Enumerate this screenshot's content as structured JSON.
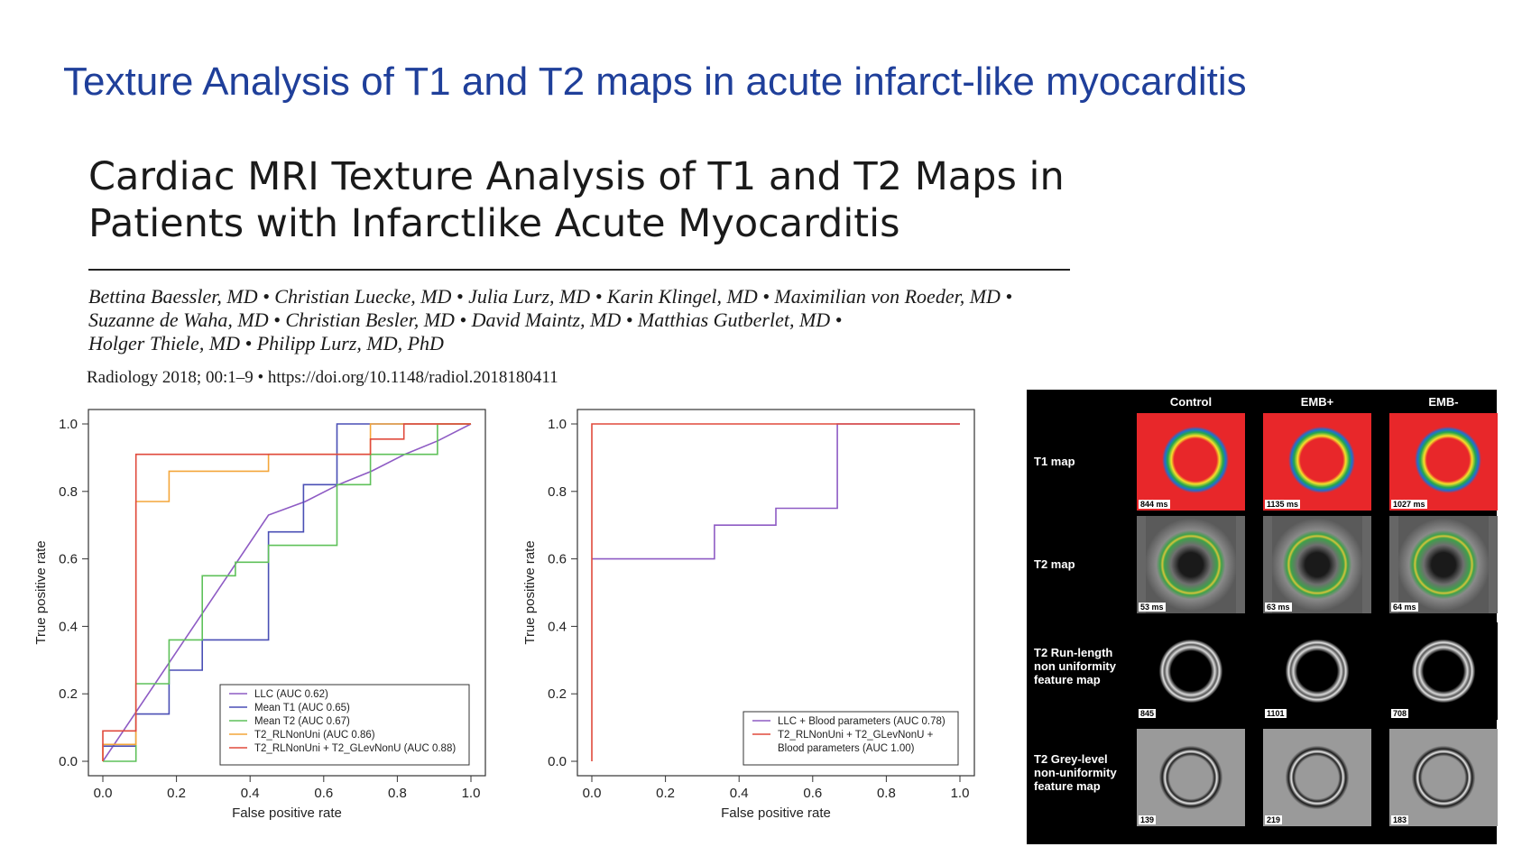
{
  "slide_title": "Texture Analysis of T1 and T2 maps in acute infarct-like myocarditis",
  "paper": {
    "title_line1": "Cardiac MRI Texture Analysis of T1 and T2 Maps in",
    "title_line2": "Patients with Infarctlike Acute Myocarditis",
    "authors_line1": "Bettina Baessler, MD • Christian Luecke, MD • Julia Lurz, MD • Karin Klingel, MD • Maximilian von Roeder, MD •",
    "authors_line2": "Suzanne de Waha, MD • Christian Besler, MD • David Maintz, MD • Matthias Gutberlet, MD •",
    "authors_line3": "Holger Thiele, MD • Philipp Lurz, MD, PhD",
    "citation": "Radiology 2018; 00:1–9   •   https://doi.org/10.1148/radiol.2018180411"
  },
  "chart_data": [
    {
      "type": "line",
      "xlabel": "False positive rate",
      "ylabel": "True positive rate",
      "xlim": [
        0,
        1
      ],
      "ylim": [
        0,
        1
      ],
      "ticks": [
        "0.0",
        "0.2",
        "0.4",
        "0.6",
        "0.8",
        "1.0"
      ],
      "legend_position": "bottom-right",
      "series": [
        {
          "name": "LLC (AUC 0.62)",
          "color": "#8e5bc4",
          "points": [
            [
              0,
              0
            ],
            [
              0.45,
              0.73
            ],
            [
              0.55,
              0.77
            ],
            [
              0.64,
              0.82
            ],
            [
              0.73,
              0.86
            ],
            [
              0.82,
              0.91
            ],
            [
              0.91,
              0.95
            ],
            [
              1,
              1
            ]
          ]
        },
        {
          "name": "Mean T1 (AUC 0.65)",
          "color": "#4a4fb5",
          "points": [
            [
              0,
              0.045
            ],
            [
              0.09,
              0.045
            ],
            [
              0.09,
              0.14
            ],
            [
              0.18,
              0.14
            ],
            [
              0.18,
              0.27
            ],
            [
              0.27,
              0.27
            ],
            [
              0.27,
              0.36
            ],
            [
              0.45,
              0.36
            ],
            [
              0.45,
              0.68
            ],
            [
              0.545,
              0.68
            ],
            [
              0.545,
              0.82
            ],
            [
              0.636,
              0.82
            ],
            [
              0.636,
              0.82
            ],
            [
              0.636,
              0.82
            ],
            [
              0.636,
              0.82
            ],
            [
              0.636,
              0.82
            ],
            [
              0.636,
              0.82
            ],
            [
              0.636,
              0.82
            ],
            [
              0.636,
              0.82
            ],
            [
              0.636,
              0.82
            ],
            [
              0.636,
              0.82
            ],
            [
              0.636,
              0.82
            ],
            [
              0.636,
              0.82
            ],
            [
              0.636,
              0.82
            ],
            [
              0.636,
              0.82
            ],
            [
              0.636,
              0.82
            ],
            [
              0.636,
              0.82
            ],
            [
              0.636,
              0.82
            ],
            [
              0.636,
              0.82
            ],
            [
              0.636,
              0.82
            ],
            [
              0.636,
              0.82
            ],
            [
              0.636,
              0.82
            ],
            [
              0.636,
              0.82
            ],
            [
              0.636,
              0.82
            ],
            [
              0.636,
              0.82
            ],
            [
              0.636,
              0.82
            ],
            [
              0.636,
              0.82
            ],
            [
              0.636,
              0.82
            ],
            [
              0.636,
              0.82
            ],
            [
              0.636,
              0.82
            ],
            [
              0.636,
              0.82
            ],
            [
              0.636,
              0.82
            ],
            [
              0.636,
              0.82
            ],
            [
              0.636,
              0.82
            ],
            [
              0.636,
              0.82
            ],
            [
              0.636,
              0.82
            ],
            [
              0.636,
              0.82
            ],
            [
              0.636,
              0.82
            ],
            [
              0.636,
              0.82
            ],
            [
              0.636,
              0.82
            ],
            [
              0.636,
              0.82
            ],
            [
              0.636,
              0.82
            ],
            [
              0.636,
              0.82
            ],
            [
              0.636,
              0.82
            ],
            [
              0.636,
              0.82
            ],
            [
              0.636,
              0.82
            ],
            [
              0.636,
              0.82
            ],
            [
              0.636,
              0.82
            ],
            [
              0.636,
              0.82
            ],
            [
              0.636,
              0.82
            ],
            [
              0.636,
              0.82
            ],
            [
              0.636,
              0.82
            ],
            [
              0.636,
              0.82
            ],
            [
              0.636,
              0.82
            ],
            [
              0.636,
              0.82
            ],
            [
              0.636,
              0.82
            ],
            [
              0.636,
              0.82
            ],
            [
              0.636,
              0.82
            ],
            [
              0.636,
              0.82
            ],
            [
              0.636,
              0.82
            ],
            [
              0.636,
              0.82
            ],
            [
              0.636,
              0.82
            ],
            [
              0.636,
              0.82
            ],
            [
              0.636,
              0.82
            ],
            [
              0.636,
              0.82
            ],
            [
              0.636,
              0.82
            ],
            [
              0.636,
              0.82
            ],
            [
              0.636,
              0.82
            ],
            [
              0.636,
              0.82
            ],
            [
              0.636,
              0.82
            ],
            [
              0.636,
              0.82
            ],
            [
              0.636,
              0.82
            ],
            [
              0.636,
              0.82
            ],
            [
              0.636,
              0.82
            ],
            [
              0.636,
              0.82
            ],
            [
              0.636,
              0.82
            ],
            [
              0.636,
              0.82
            ],
            [
              0.636,
              0.82
            ],
            [
              0.636,
              0.82
            ],
            [
              0.636,
              0.82
            ],
            [
              0.636,
              0.82
            ],
            [
              0.636,
              0.82
            ],
            [
              0.636,
              0.82
            ],
            [
              0.636,
              0.82
            ],
            [
              0.636,
              0.82
            ],
            [
              0.636,
              0.82
            ],
            [
              0.636,
              0.82
            ],
            [
              0.636,
              0.82
            ],
            [
              0.636,
              0.82
            ],
            [
              0.636,
              0.82
            ],
            [
              0.636,
              0.82
            ],
            [
              0.636,
              0.82
            ],
            [
              0.636,
              0.82
            ],
            [
              0.636,
              0.82
            ],
            [
              0.636,
              0.82
            ],
            [
              0.636,
              0.82
            ],
            [
              0.636,
              0.82
            ],
            [
              0.636,
              0.82
            ],
            [
              0.636,
              0.82
            ],
            [
              0.636,
              0.82
            ],
            [
              0.636,
              0.82
            ],
            [
              0.636,
              0.82
            ],
            [
              0.636,
              1
            ],
            [
              1,
              1
            ]
          ]
        },
        {
          "name": "Mean T2 (AUC 0.67)",
          "color": "#5fc15a",
          "points": [
            [
              0,
              0
            ],
            [
              0.09,
              0
            ],
            [
              0.09,
              0.23
            ],
            [
              0.18,
              0.23
            ],
            [
              0.18,
              0.36
            ],
            [
              0.27,
              0.36
            ],
            [
              0.27,
              0.55
            ],
            [
              0.36,
              0.55
            ],
            [
              0.36,
              0.59
            ],
            [
              0.45,
              0.59
            ],
            [
              0.45,
              0.64
            ],
            [
              0.636,
              0.64
            ],
            [
              0.636,
              0.82
            ],
            [
              0.727,
              0.82
            ],
            [
              0.727,
              0.91
            ],
            [
              0.909,
              0.91
            ],
            [
              0.909,
              1
            ],
            [
              1,
              1
            ]
          ]
        },
        {
          "name": "T2_RLNonUni (AUC 0.86)",
          "color": "#f4a63a",
          "points": [
            [
              0,
              0
            ],
            [
              0,
              0.05
            ],
            [
              0.09,
              0.05
            ],
            [
              0.09,
              0.77
            ],
            [
              0.18,
              0.77
            ],
            [
              0.18,
              0.86
            ],
            [
              0.45,
              0.86
            ],
            [
              0.45,
              0.91
            ],
            [
              0.727,
              0.91
            ],
            [
              0.727,
              1
            ],
            [
              1,
              1
            ]
          ]
        },
        {
          "name": "T2_RLNonUni + T2_GLevNonU (AUC 0.88)",
          "color": "#e04a3c",
          "points": [
            [
              0,
              0
            ],
            [
              0,
              0.09
            ],
            [
              0.09,
              0.09
            ],
            [
              0.09,
              0.91
            ],
            [
              0.727,
              0.91
            ],
            [
              0.727,
              0.955
            ],
            [
              0.818,
              0.955
            ],
            [
              0.818,
              1
            ],
            [
              1,
              1
            ]
          ]
        }
      ]
    },
    {
      "type": "line",
      "xlabel": "False positive rate",
      "ylabel": "True positive rate",
      "xlim": [
        0,
        1
      ],
      "ylim": [
        0,
        1
      ],
      "ticks": [
        "0.0",
        "0.2",
        "0.4",
        "0.6",
        "0.8",
        "1.0"
      ],
      "legend_position": "bottom-right",
      "series": [
        {
          "name": "LLC + Blood parameters (AUC 0.78)",
          "color": "#8e5bc4",
          "points": [
            [
              0,
              0.6
            ],
            [
              0.333,
              0.6
            ],
            [
              0.333,
              0.7
            ],
            [
              0.5,
              0.7
            ],
            [
              0.5,
              0.75
            ],
            [
              0.667,
              0.75
            ],
            [
              0.667,
              1
            ],
            [
              1,
              1
            ]
          ]
        },
        {
          "name_lines": [
            "T2_RLNonUni + T2_GLevNonU +",
            "Blood parameters (AUC 1.00)"
          ],
          "color": "#e04a3c",
          "points": [
            [
              0,
              0
            ],
            [
              0,
              1
            ],
            [
              1,
              1
            ]
          ]
        }
      ]
    }
  ],
  "mri_figure": {
    "columns": [
      "Control",
      "EMB+",
      "EMB-"
    ],
    "rows": [
      {
        "label": [
          "T1 map"
        ],
        "values": [
          "844 ms",
          "1135 ms",
          "1027 ms"
        ]
      },
      {
        "label": [
          "T2 map"
        ],
        "values": [
          "53 ms",
          "63 ms",
          "64 ms"
        ]
      },
      {
        "label": [
          "T2 Run-length",
          "non uniformity",
          "feature map"
        ],
        "values": [
          "845",
          "1101",
          "708"
        ]
      },
      {
        "label": [
          "T2 Grey-level",
          "non-uniformity",
          "feature map"
        ],
        "values": [
          "139",
          "219",
          "183"
        ]
      }
    ]
  }
}
